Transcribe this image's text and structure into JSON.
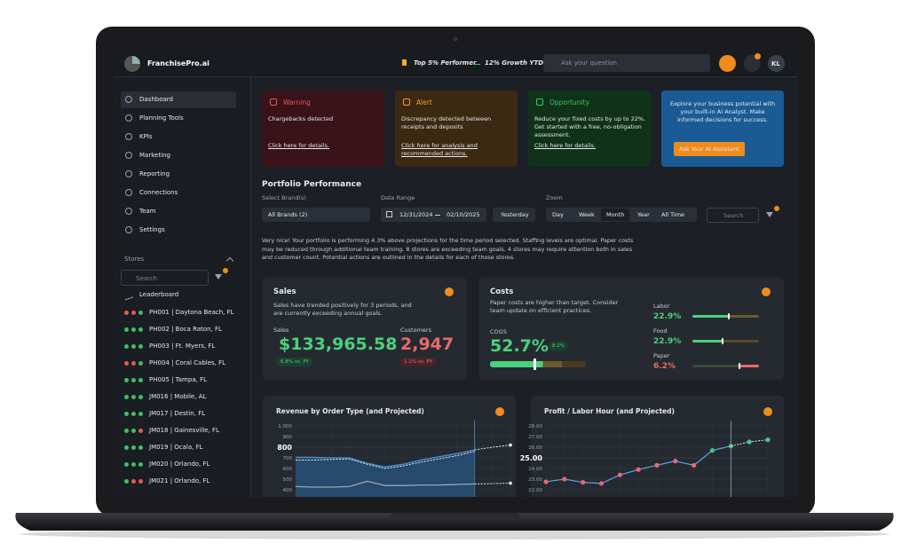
{
  "header": {
    "brand": "FranchisePro.ai",
    "badges": [
      "Top 5% Performer",
      "12% Growth YTD"
    ],
    "search_placeholder": "Ask your question",
    "avatar": "KL"
  },
  "sidebar": {
    "nav": [
      "Dashboard",
      "Planning Tools",
      "KPIs",
      "Marketing",
      "Reporting",
      "Connections",
      "Team",
      "Settings"
    ],
    "stores_title": "Stores",
    "search_placeholder": "Search",
    "leaderboard": "Leaderboard",
    "stores": [
      {
        "name": "PH001 | Daytona Beach, FL",
        "status": [
          "#e05a5a",
          "#e05a5a",
          "#3fbf6a"
        ]
      },
      {
        "name": "PH002 | Boca Raton, FL",
        "status": [
          "#3fbf6a",
          "#3fbf6a",
          "#3fbf6a"
        ]
      },
      {
        "name": "PH003 | Ft. Myers, FL",
        "status": [
          "#3fbf6a",
          "#3fbf6a",
          "#3fbf6a"
        ]
      },
      {
        "name": "PH004 | Coral Cables, FL",
        "status": [
          "#e05a5a",
          "#e05a5a",
          "#3fbf6a"
        ]
      },
      {
        "name": "PH005 | Tampa, FL",
        "status": [
          "#3fbf6a",
          "#3fbf6a",
          "#3fbf6a"
        ]
      },
      {
        "name": "JM016 | Mobile, AL",
        "status": [
          "#3fbf6a",
          "#3fbf6a",
          "#3fbf6a"
        ]
      },
      {
        "name": "JM017 | Destin, FL",
        "status": [
          "#3fbf6a",
          "#3fbf6a",
          "#3fbf6a"
        ]
      },
      {
        "name": "JM018 | Gainesville, FL",
        "status": [
          "#3fbf6a",
          "#3fbf6a",
          "#e05a5a"
        ]
      },
      {
        "name": "JM019 | Ocala, FL",
        "status": [
          "#3fbf6a",
          "#3fbf6a",
          "#3fbf6a"
        ]
      },
      {
        "name": "JM020 | Orlando, FL",
        "status": [
          "#3fbf6a",
          "#3fbf6a",
          "#3fbf6a"
        ]
      },
      {
        "name": "JM021 | Orlando, FL",
        "status": [
          "#3fbf6a",
          "#e05a5a",
          "#e05a5a"
        ]
      }
    ]
  },
  "alerts": [
    {
      "title": "Warning",
      "text": "Chargebacks detected",
      "link": "Click here for details.",
      "color": "#e85a5a",
      "background": "#3a1219"
    },
    {
      "title": "Alert",
      "text": "Discrepancy detected between receipts and deposits",
      "link": "Click here for analysis and recommended actions.",
      "color": "#f0a030",
      "background": "#3b2912"
    },
    {
      "title": "Opportunity",
      "text": "Reduce your fixed costs by up to 22%. Get started with a free, no-obligation assessment.",
      "link": "Click here for details.",
      "color": "#45c463",
      "background": "#0f3219"
    }
  ],
  "assistant": {
    "text": "Explore your business potential with your built-in AI Analyst. Make informed decisions for success.",
    "button": "Ask Your AI Assistant"
  },
  "portfolio": {
    "title": "Portfolio Performance",
    "brand_label": "Select Brand(s)",
    "brand_value": "All Brands (2)",
    "date_label": "Date Range",
    "date_from": "12/31/2024",
    "date_to": "02/10/2025",
    "date_preset": "Yesterday",
    "zoom_label": "Zoom",
    "zoom_options": [
      "Day",
      "Week",
      "Month",
      "Year",
      "All Time"
    ],
    "search_placeholder": "Search",
    "summary": "Very nice! Your portfolio is performing 4.3% above projections for the time period selected.  Staffing levels are optimal.  Paper costs may be reduced through additional team training.  8 stores are exceeding team goals.  4 stores may require attention both in sales and customer count.  Potential actions are outlined in the details for each of those stores."
  },
  "sales": {
    "title": "Sales",
    "text": "Sales have trended positively for 3 periods, and are currently exceeding annual goals.",
    "metrics": [
      {
        "label": "Sales",
        "value": "$133,965.58",
        "change": "6.8% vs. PY",
        "color": "#4cd07d"
      },
      {
        "label": "Customers",
        "value": "2,947",
        "change": "1.1% vs. PY",
        "color": "#e86a6a"
      }
    ]
  },
  "costs": {
    "title": "Costs",
    "text": "Paper costs are higher than target.  Consider team update on efficient practices.",
    "cogs_label": "COGS",
    "cogs_value": "52.7%",
    "cogs_change": "8.2%",
    "items": [
      {
        "label": "Labor",
        "value": "22.9%",
        "color": "#4cd07d"
      },
      {
        "label": "Food",
        "value": "22.9%",
        "color": "#4cd07d"
      },
      {
        "label": "Paper",
        "value": "6.2%",
        "color": "#e86a6a"
      }
    ]
  },
  "charts": [
    {
      "type": "line",
      "title": "Revenue by Order Type (and Projected)",
      "ylim": [
        335,
        1050
      ],
      "yticks": [
        {
          "value": 1000,
          "label": "1,000"
        },
        900,
        700,
        600,
        500,
        400
      ],
      "target": 800,
      "series": [
        {
          "values": [
            705,
            705,
            700,
            700,
            650,
            615,
            640,
            680,
            710,
            740,
            775,
            null,
            null
          ],
          "color": "#4a8fd0",
          "area": true
        },
        {
          "values": [
            null,
            null,
            null,
            null,
            null,
            null,
            null,
            null,
            null,
            null,
            775,
            800,
            820
          ],
          "color": "#ffffff",
          "dashed": true
        },
        {
          "values": [
            680,
            680,
            685,
            690,
            640,
            600,
            625,
            660,
            690,
            720,
            760,
            null,
            null
          ],
          "color": "#ffffff",
          "dashed": true
        },
        {
          "values": [
            430,
            425,
            425,
            430,
            480,
            440,
            440,
            445,
            445,
            450,
            455,
            null,
            null
          ],
          "color": "#9aa6b4"
        },
        {
          "values": [
            null,
            null,
            null,
            null,
            null,
            null,
            null,
            null,
            null,
            null,
            455,
            458,
            462
          ],
          "color": "#ffffff",
          "dashed": true
        }
      ]
    },
    {
      "type": "line",
      "title": "Profit / Labor Hour (and Projected)",
      "ylim": [
        21.4,
        28.5
      ],
      "yticks": [
        {
          "value": 28,
          "label": "28.00"
        },
        {
          "value": 27,
          "label": "27.00"
        },
        {
          "value": 26,
          "label": "26.00"
        },
        {
          "value": 24,
          "label": "24.00"
        },
        {
          "value": 23,
          "label": "23.00"
        },
        {
          "value": 22,
          "label": "22.00"
        }
      ],
      "target": {
        "value": 25,
        "label": "25.00"
      },
      "series": [
        {
          "values": [
            22.75,
            23.0,
            22.7,
            22.6,
            23.4,
            23.9,
            24.3,
            24.7,
            24.3,
            25.7,
            26.1,
            null,
            null
          ],
          "color": "#5b9be0",
          "point_colors": [
            "#e86a6a",
            "#e86a6a",
            "#e86a6a",
            "#e86a6a",
            "#e86a6a",
            "#e86a6a",
            "#e86a6a",
            "#e86a6a",
            "#e86a6a",
            "#4cc38a",
            "#4cc38a",
            null,
            null
          ]
        },
        {
          "values": [
            null,
            null,
            null,
            null,
            null,
            null,
            null,
            null,
            null,
            null,
            26.1,
            26.5,
            26.7
          ],
          "color": "#ffffff",
          "dashed": true,
          "point_colors": [
            null,
            null,
            null,
            null,
            null,
            null,
            null,
            null,
            null,
            null,
            null,
            "#4cc38a",
            "#4cc38a"
          ]
        }
      ]
    }
  ]
}
